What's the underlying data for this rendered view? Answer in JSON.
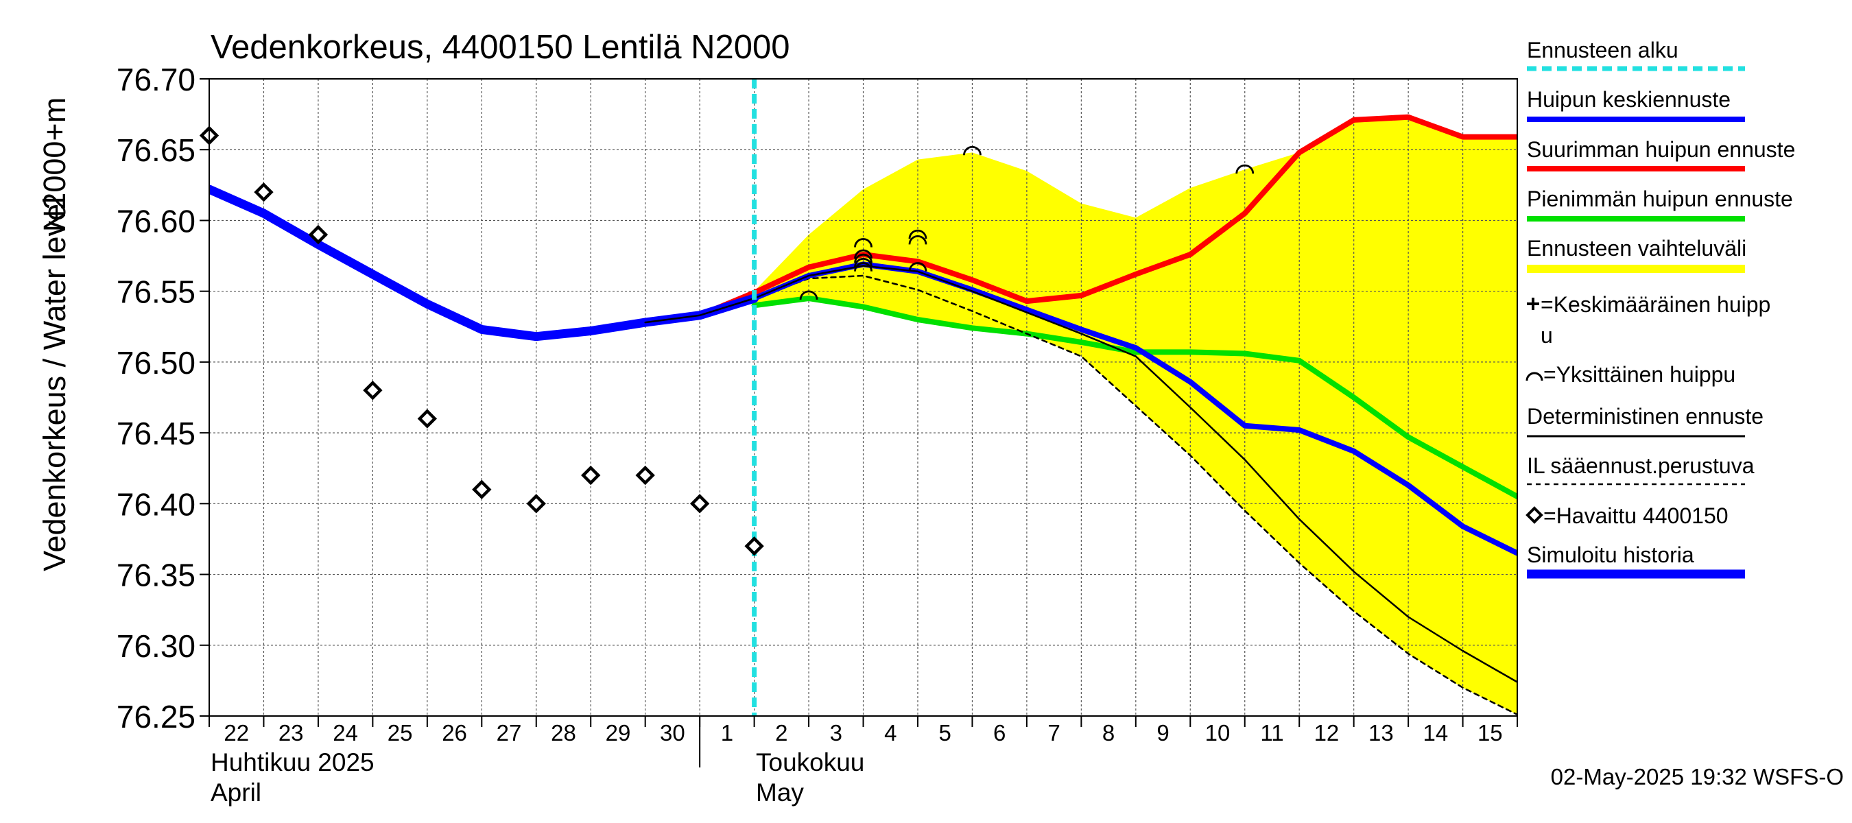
{
  "chart_data": {
    "type": "line",
    "title": "Vedenkorkeus, 4400150 Lentilä N2000",
    "ylabel_left": "Vedenkorkeus / Water level",
    "ylabel_right": "N2000+m",
    "ylim": [
      76.25,
      76.7
    ],
    "yticks": [
      "76.70",
      "76.65",
      "76.60",
      "76.55",
      "76.50",
      "76.45",
      "76.40",
      "76.35",
      "76.30",
      "76.25"
    ],
    "xlim": [
      "2025-04-22",
      "2025-05-15T23:59"
    ],
    "xticks": [
      "22",
      "23",
      "24",
      "25",
      "26",
      "27",
      "28",
      "29",
      "30",
      "1",
      "2",
      "3",
      "4",
      "5",
      "6",
      "7",
      "8",
      "9",
      "10",
      "11",
      "12",
      "13",
      "14",
      "15"
    ],
    "month_labels": [
      {
        "fi": "Huhtikuu  2025",
        "en": "April",
        "start": "2025-04-22"
      },
      {
        "fi": "Toukokuu",
        "en": "May",
        "start": "2025-05-02"
      }
    ],
    "grid": true,
    "forecast_start": "2025-05-02",
    "timestamp": "02-May-2025 19:32 WSFS-O",
    "colors": {
      "forecast_start": "#22e0e0",
      "mean_peak": "#0000ff",
      "max_peak": "#ff0000",
      "min_peak": "#00e000",
      "range": "#ffff00",
      "history": "#0000ff",
      "deterministic": "#000000",
      "observed": "#000000"
    },
    "legend": [
      {
        "label": "Ennusteen alku",
        "style": "dashed-cyan"
      },
      {
        "label": "Huipun keskiennuste",
        "style": "blue"
      },
      {
        "label": "Suurimman huipun ennuste",
        "style": "red"
      },
      {
        "label": "Pienimmän huipun ennuste",
        "style": "green"
      },
      {
        "label": "Ennusteen vaihteluväli",
        "style": "yellow"
      },
      {
        "label": "=Keskimääräinen huipp",
        "label2": "u",
        "style": "plus"
      },
      {
        "label": "=Yksittäinen huippu",
        "style": "arc"
      },
      {
        "label": "Deterministinen ennuste",
        "style": "black"
      },
      {
        "label": "IL sääennust.perustuva",
        "style": "black-dashed"
      },
      {
        "label": "=Havaittu 4400150",
        "style": "diamond"
      },
      {
        "label": "Simuloitu historia",
        "style": "blue-thick"
      }
    ],
    "series": [
      {
        "name": "Simuloitu historia",
        "x": [
          "2025-04-22",
          "2025-04-23",
          "2025-04-24",
          "2025-04-25",
          "2025-04-26",
          "2025-04-27",
          "2025-04-28",
          "2025-04-29",
          "2025-04-30",
          "2025-05-01",
          "2025-05-02"
        ],
        "y": [
          76.622,
          76.605,
          76.583,
          76.562,
          76.541,
          76.523,
          76.518,
          76.522,
          76.528,
          76.533,
          76.545
        ]
      },
      {
        "name": "Huipun keskiennuste",
        "x": [
          "2025-05-02",
          "2025-05-03",
          "2025-05-04",
          "2025-05-05",
          "2025-05-06",
          "2025-05-07",
          "2025-05-08",
          "2025-05-09",
          "2025-05-10",
          "2025-05-11",
          "2025-05-12",
          "2025-05-13",
          "2025-05-14",
          "2025-05-15",
          "2025-05-15T23:59"
        ],
        "y": [
          76.545,
          76.561,
          76.569,
          76.564,
          76.551,
          76.537,
          76.523,
          76.51,
          76.486,
          76.455,
          76.452,
          76.437,
          76.413,
          76.384,
          76.365
        ]
      },
      {
        "name": "Suurimman huipun ennuste",
        "x": [
          "2025-05-01",
          "2025-05-02",
          "2025-05-03",
          "2025-05-04",
          "2025-05-05",
          "2025-05-06",
          "2025-05-07",
          "2025-05-08",
          "2025-05-09",
          "2025-05-10",
          "2025-05-11",
          "2025-05-12",
          "2025-05-13",
          "2025-05-14",
          "2025-05-15",
          "2025-05-15T23:59"
        ],
        "y": [
          76.533,
          76.549,
          76.567,
          76.576,
          76.571,
          76.558,
          76.543,
          76.547,
          76.562,
          76.576,
          76.605,
          76.648,
          76.671,
          76.673,
          76.659,
          76.659
        ]
      },
      {
        "name": "Pienimmän huipun ennuste",
        "x": [
          "2025-05-02",
          "2025-05-03",
          "2025-05-04",
          "2025-05-05",
          "2025-05-06",
          "2025-05-07",
          "2025-05-08",
          "2025-05-09",
          "2025-05-10",
          "2025-05-11",
          "2025-05-12",
          "2025-05-13",
          "2025-05-14",
          "2025-05-15",
          "2025-05-15T23:59"
        ],
        "y": [
          76.54,
          76.545,
          76.539,
          76.53,
          76.524,
          76.52,
          76.514,
          76.507,
          76.507,
          76.506,
          76.501,
          76.475,
          76.447,
          76.426,
          76.405
        ]
      },
      {
        "name": "Deterministinen ennuste",
        "x": [
          "2025-04-30",
          "2025-05-01",
          "2025-05-02",
          "2025-05-03",
          "2025-05-04",
          "2025-05-05",
          "2025-05-06",
          "2025-05-07",
          "2025-05-08",
          "2025-05-09",
          "2025-05-10",
          "2025-05-11",
          "2025-05-12",
          "2025-05-13",
          "2025-05-14",
          "2025-05-15",
          "2025-05-15T23:59"
        ],
        "y": [
          76.528,
          76.533,
          76.545,
          76.561,
          76.568,
          76.564,
          76.55,
          76.535,
          76.52,
          76.504,
          76.468,
          76.431,
          76.389,
          76.352,
          76.32,
          76.296,
          76.274
        ]
      },
      {
        "name": "IL sääennust.perustuva",
        "x": [
          "2025-05-02",
          "2025-05-03",
          "2025-05-04",
          "2025-05-05",
          "2025-05-06",
          "2025-05-07",
          "2025-05-08",
          "2025-05-09",
          "2025-05-10",
          "2025-05-11",
          "2025-05-12",
          "2025-05-13",
          "2025-05-14",
          "2025-05-15",
          "2025-05-15T23:59"
        ],
        "y": [
          76.545,
          76.559,
          76.561,
          76.551,
          76.536,
          76.52,
          76.504,
          76.469,
          76.434,
          76.395,
          76.358,
          76.324,
          76.294,
          76.27,
          76.251
        ]
      },
      {
        "name": "Ennusteen vaihteluväli",
        "x": [
          "2025-05-02",
          "2025-05-03",
          "2025-05-04",
          "2025-05-05",
          "2025-05-06",
          "2025-05-07",
          "2025-05-08",
          "2025-05-09",
          "2025-05-10",
          "2025-05-11",
          "2025-05-12",
          "2025-05-13",
          "2025-05-14",
          "2025-05-15",
          "2025-05-15T23:59"
        ],
        "upper": [
          76.55,
          76.59,
          76.622,
          76.643,
          76.648,
          76.635,
          76.612,
          76.602,
          76.623,
          76.636,
          76.648,
          76.671,
          76.673,
          76.659,
          76.659
        ],
        "lower": [
          76.54,
          76.545,
          76.539,
          76.53,
          76.524,
          76.52,
          76.504,
          76.469,
          76.434,
          76.395,
          76.358,
          76.324,
          76.294,
          76.27,
          76.251
        ]
      },
      {
        "name": "Havaittu 4400150",
        "x": [
          "2025-04-22",
          "2025-04-23",
          "2025-04-24",
          "2025-04-25",
          "2025-04-26",
          "2025-04-27",
          "2025-04-28",
          "2025-04-29",
          "2025-04-30",
          "2025-05-01",
          "2025-05-02"
        ],
        "y": [
          76.66,
          76.62,
          76.59,
          76.48,
          76.46,
          76.41,
          76.4,
          76.42,
          76.42,
          76.4,
          76.37
        ]
      },
      {
        "name": "Yksittäinen huippu",
        "x": [
          "2025-05-03",
          "2025-05-04",
          "2025-05-04",
          "2025-05-04",
          "2025-05-04",
          "2025-05-04",
          "2025-05-05",
          "2025-05-05",
          "2025-05-05",
          "2025-05-06",
          "2025-05-11"
        ],
        "y": [
          76.547,
          76.584,
          76.576,
          76.573,
          76.57,
          76.567,
          76.59,
          76.586,
          76.567,
          76.649,
          76.636
        ]
      }
    ]
  }
}
